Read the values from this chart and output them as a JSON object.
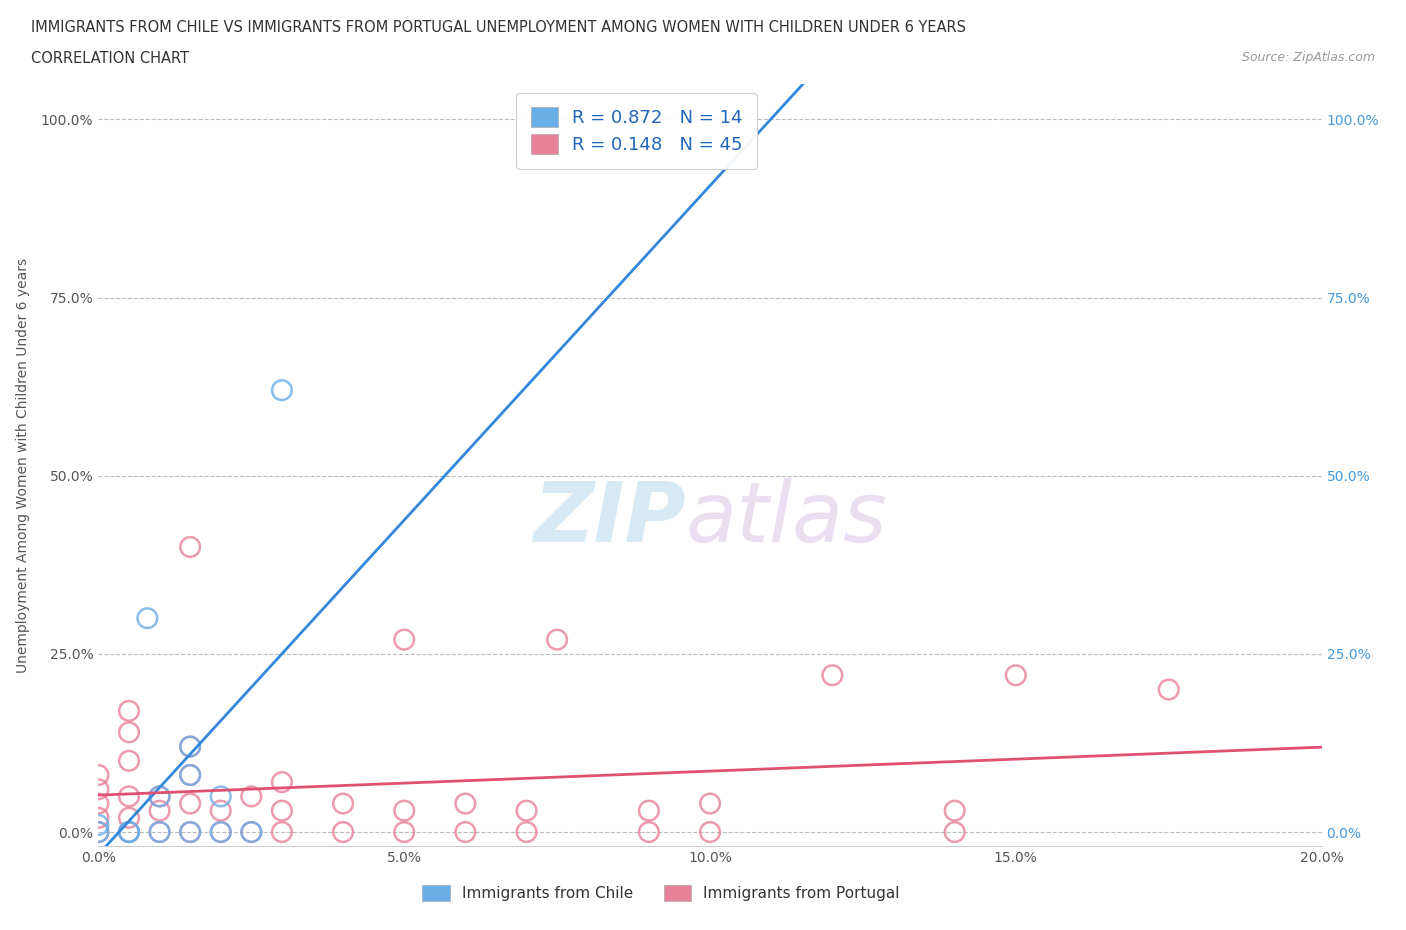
{
  "title_line1": "IMMIGRANTS FROM CHILE VS IMMIGRANTS FROM PORTUGAL UNEMPLOYMENT AMONG WOMEN WITH CHILDREN UNDER 6 YEARS",
  "title_line2": "CORRELATION CHART",
  "source": "Source: ZipAtlas.com",
  "ylabel": "Unemployment Among Women with Children Under 6 years",
  "watermark_zip": "ZIP",
  "watermark_atlas": "atlas",
  "xlim": [
    0.0,
    0.2
  ],
  "ylim": [
    -0.02,
    1.05
  ],
  "xticks": [
    0.0,
    0.05,
    0.1,
    0.15,
    0.2
  ],
  "xtick_labels": [
    "0.0%",
    "5.0%",
    "10.0%",
    "15.0%",
    "20.0%"
  ],
  "yticks": [
    0.0,
    0.25,
    0.5,
    0.75,
    1.0
  ],
  "ytick_labels": [
    "0.0%",
    "25.0%",
    "50.0%",
    "75.0%",
    "100.0%"
  ],
  "chile_color": "#6aaee8",
  "portugal_color": "#e8829a",
  "chile_line_color": "#3388dd",
  "portugal_line_color": "#e05070",
  "chile_R": 0.872,
  "chile_N": 14,
  "portugal_R": 0.148,
  "portugal_N": 45,
  "chile_points": [
    [
      0.0,
      0.0
    ],
    [
      0.0,
      0.01
    ],
    [
      0.005,
      0.0
    ],
    [
      0.005,
      0.0
    ],
    [
      0.008,
      0.3
    ],
    [
      0.01,
      0.0
    ],
    [
      0.01,
      0.05
    ],
    [
      0.015,
      0.0
    ],
    [
      0.015,
      0.08
    ],
    [
      0.015,
      0.12
    ],
    [
      0.02,
      0.0
    ],
    [
      0.02,
      0.05
    ],
    [
      0.025,
      0.0
    ],
    [
      0.03,
      0.62
    ]
  ],
  "portugal_points": [
    [
      0.0,
      0.0
    ],
    [
      0.0,
      0.02
    ],
    [
      0.0,
      0.04
    ],
    [
      0.0,
      0.06
    ],
    [
      0.0,
      0.08
    ],
    [
      0.005,
      0.0
    ],
    [
      0.005,
      0.02
    ],
    [
      0.005,
      0.05
    ],
    [
      0.005,
      0.1
    ],
    [
      0.005,
      0.14
    ],
    [
      0.005,
      0.17
    ],
    [
      0.01,
      0.0
    ],
    [
      0.01,
      0.03
    ],
    [
      0.01,
      0.05
    ],
    [
      0.015,
      0.0
    ],
    [
      0.015,
      0.04
    ],
    [
      0.015,
      0.08
    ],
    [
      0.015,
      0.12
    ],
    [
      0.015,
      0.4
    ],
    [
      0.02,
      0.0
    ],
    [
      0.02,
      0.03
    ],
    [
      0.025,
      0.0
    ],
    [
      0.025,
      0.05
    ],
    [
      0.03,
      0.0
    ],
    [
      0.03,
      0.03
    ],
    [
      0.03,
      0.07
    ],
    [
      0.04,
      0.0
    ],
    [
      0.04,
      0.04
    ],
    [
      0.05,
      0.0
    ],
    [
      0.05,
      0.03
    ],
    [
      0.05,
      0.27
    ],
    [
      0.06,
      0.0
    ],
    [
      0.06,
      0.04
    ],
    [
      0.07,
      0.0
    ],
    [
      0.07,
      0.03
    ],
    [
      0.075,
      0.27
    ],
    [
      0.09,
      0.0
    ],
    [
      0.09,
      0.03
    ],
    [
      0.1,
      0.0
    ],
    [
      0.1,
      0.04
    ],
    [
      0.12,
      0.22
    ],
    [
      0.14,
      0.0
    ],
    [
      0.14,
      0.03
    ],
    [
      0.15,
      0.22
    ],
    [
      0.175,
      0.2
    ]
  ],
  "legend_label_chile": "Immigrants from Chile",
  "legend_label_portugal": "Immigrants from Portugal",
  "bg_color": "#ffffff",
  "grid_color": "#bbbbbb"
}
